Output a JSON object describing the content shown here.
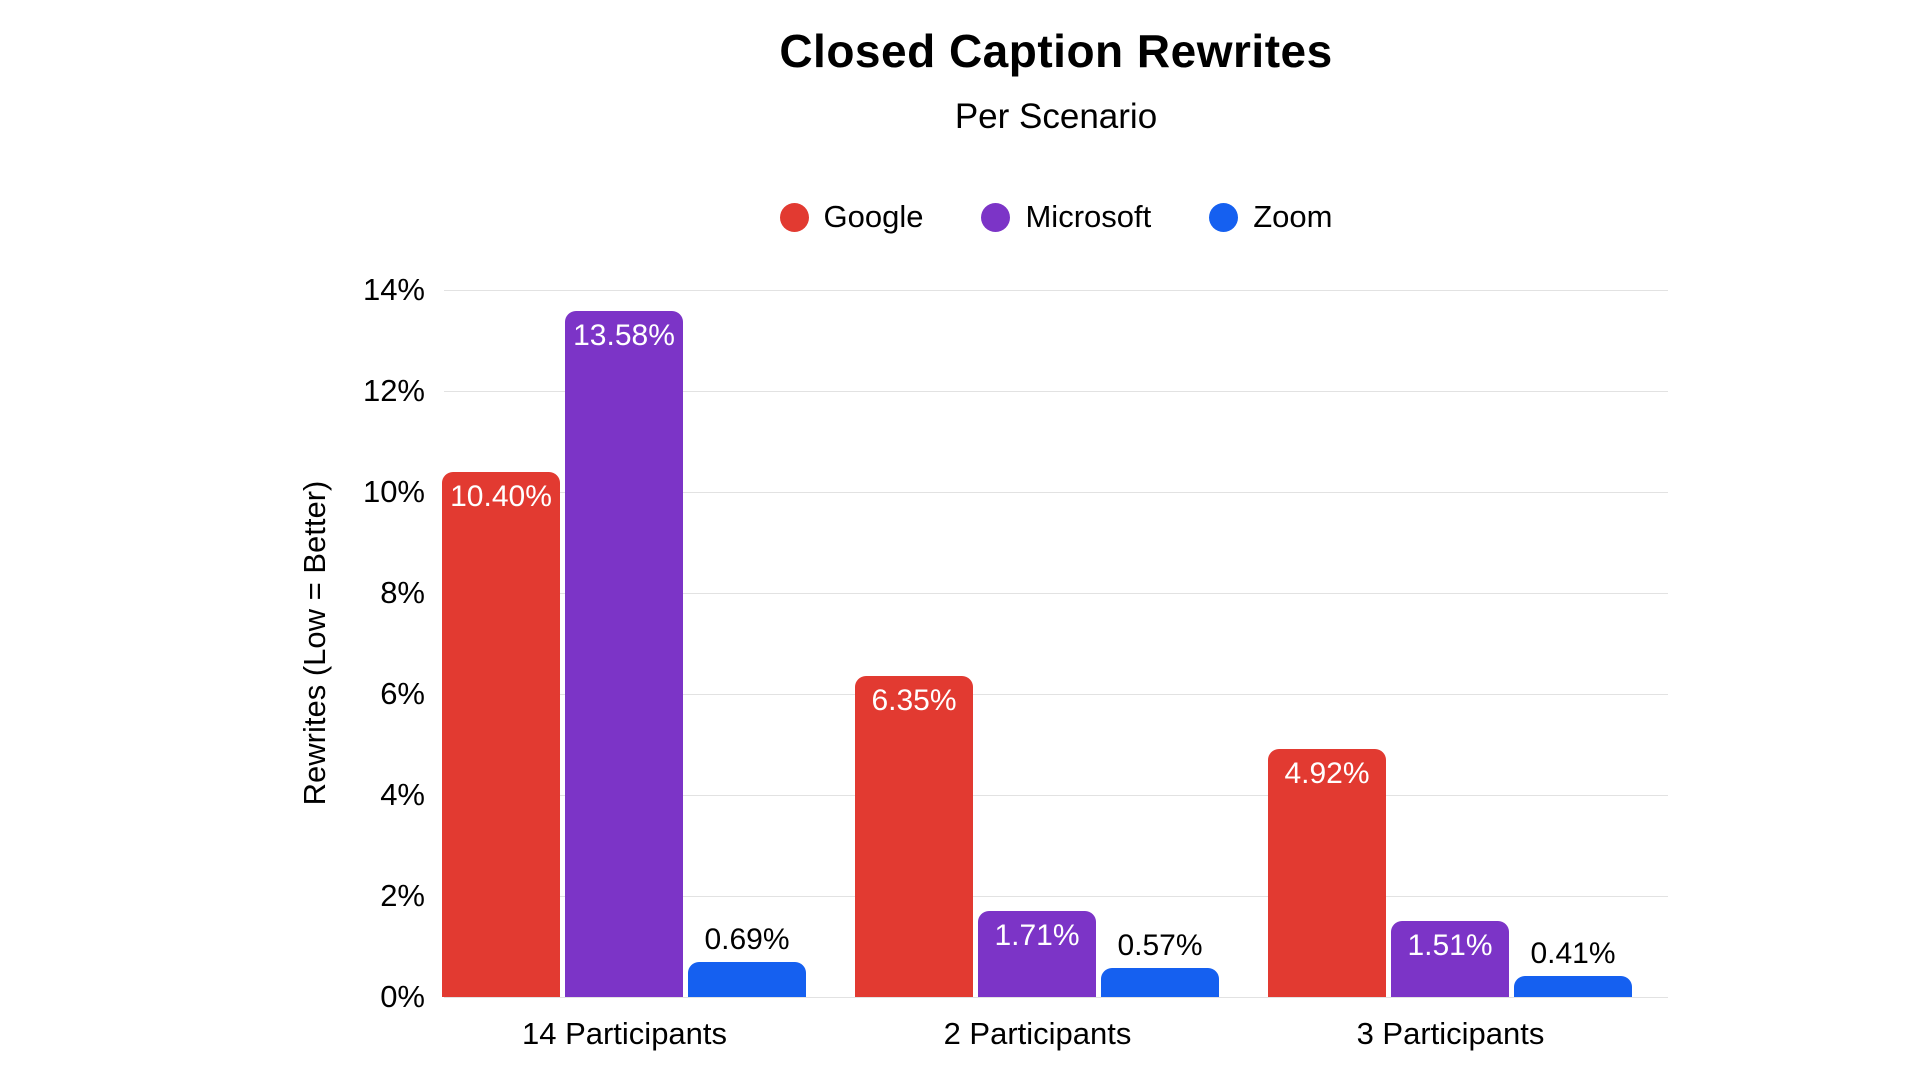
{
  "title": "Closed Caption Rewrites",
  "subtitle": "Per Scenario",
  "y_axis_title": "Rewrites (Low = Better)",
  "chart_data": {
    "type": "bar",
    "title": "Closed Caption Rewrites",
    "subtitle": "Per Scenario",
    "categories": [
      "14 Participants",
      "2 Participants",
      "3 Participants"
    ],
    "series": [
      {
        "name": "Google",
        "color": "#e23a31",
        "values": [
          10.4,
          6.35,
          4.92
        ],
        "labels": [
          "10.40%",
          "6.35%",
          "4.92%"
        ]
      },
      {
        "name": "Microsoft",
        "color": "#7c34c7",
        "values": [
          13.58,
          1.71,
          1.51
        ],
        "labels": [
          "13.58%",
          "1.71%",
          "1.51%"
        ]
      },
      {
        "name": "Zoom",
        "color": "#1560f0",
        "values": [
          0.69,
          0.57,
          0.41
        ],
        "labels": [
          "0.69%",
          "0.57%",
          "0.41%"
        ]
      }
    ],
    "xlabel": "",
    "ylabel": "Rewrites (Low = Better)",
    "ylim": [
      0,
      14
    ],
    "yticks": [
      "0%",
      "2%",
      "4%",
      "6%",
      "8%",
      "10%",
      "12%",
      "14%"
    ],
    "ytick_values": [
      0,
      2,
      4,
      6,
      8,
      10,
      12,
      14
    ],
    "grid": true,
    "legend_position": "top",
    "value_label_style": "inside-top-white-or-above-black"
  },
  "colors": {
    "background": "#ffffff",
    "gridline": "#e2e2e2",
    "text": "#000000",
    "bar_label_light": "#ffffff"
  }
}
